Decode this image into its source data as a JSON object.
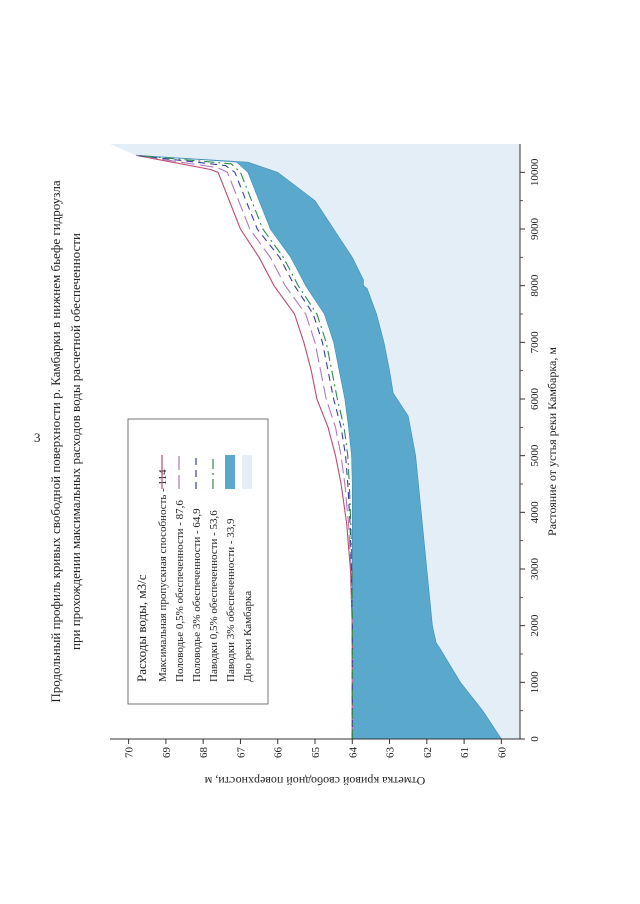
{
  "page_number": "3",
  "chart_data": {
    "type": "area",
    "title": "Продольный профиль кривых свободной поверхности р. Камбарки в нижнем бьефе гидроузла",
    "subtitle": "при прохождении максимальных расходов воды расчетной обеспеченности",
    "xlabel": "Растояние от устья реки Камбарка, м",
    "ylabel": "Отметка кривой свободной поверхности, м",
    "xlim": [
      0,
      10500
    ],
    "ylim": [
      59.5,
      70.5
    ],
    "xticks": [
      "0",
      "1000",
      "2000",
      "3000",
      "4000",
      "5000",
      "6000",
      "7000",
      "8000",
      "9000",
      "10000"
    ],
    "yticks": [
      "60",
      "61",
      "62",
      "63",
      "64",
      "65",
      "66",
      "67",
      "68",
      "69",
      "70"
    ],
    "x_tick_values": [
      0,
      1000,
      2000,
      3000,
      4000,
      5000,
      6000,
      7000,
      8000,
      9000,
      10000
    ],
    "y_tick_values": [
      60,
      61,
      62,
      63,
      64,
      65,
      66,
      67,
      68,
      69,
      70
    ],
    "grid": false,
    "legend_position": "lower-left",
    "legend_title": "Расходы воды, м3/с",
    "colors": {
      "max": "#c04a6a",
      "p05_flood": "#b07ab8",
      "p3_flood": "#3a3fa0",
      "p05_rain": "#2e8a4a",
      "p3_rain": "#5aa8cc",
      "bed": "#e4eef6"
    },
    "series": [
      {
        "name": "Максимальная пропускная способность - 114",
        "style": "solid",
        "color": "#c04a6a",
        "x": [
          0,
          1000,
          2000,
          3000,
          3800,
          4500,
          5000,
          5500,
          6000,
          6500,
          7000,
          7500,
          8000,
          8500,
          9000,
          9500,
          10000,
          10050,
          10300
        ],
        "y": [
          64.0,
          64.0,
          64.0,
          64.05,
          64.15,
          64.3,
          64.45,
          64.65,
          64.95,
          65.1,
          65.3,
          65.55,
          66.1,
          66.5,
          67.0,
          67.3,
          67.6,
          67.8,
          69.8
        ]
      },
      {
        "name": "Половодье 0,5% обеспеченности - 87,6",
        "style": "dash-long",
        "color": "#b07ab8",
        "x": [
          0,
          1000,
          2000,
          3000,
          3800,
          4500,
          5000,
          5500,
          6000,
          6500,
          7000,
          7500,
          8000,
          8500,
          9000,
          9500,
          10000,
          10080,
          10300
        ],
        "y": [
          64.0,
          64.0,
          64.0,
          64.03,
          64.1,
          64.2,
          64.3,
          64.45,
          64.7,
          64.85,
          65.0,
          65.25,
          65.8,
          66.2,
          66.75,
          67.05,
          67.35,
          67.6,
          69.8
        ]
      },
      {
        "name": "Половодье 3% обеспеченности - 64,9",
        "style": "dash",
        "color": "#3a3fa0",
        "x": [
          0,
          1000,
          2000,
          3000,
          3800,
          4500,
          5000,
          5500,
          6000,
          6500,
          7000,
          7500,
          8000,
          8500,
          9000,
          9500,
          10000,
          10120,
          10300
        ],
        "y": [
          64.0,
          64.0,
          64.0,
          64.02,
          64.06,
          64.12,
          64.18,
          64.3,
          64.5,
          64.65,
          64.8,
          65.05,
          65.55,
          65.95,
          66.55,
          66.85,
          67.15,
          67.4,
          69.8
        ]
      },
      {
        "name": "Паводки 0,5% обеспеченности - 53,6",
        "style": "dash-dot",
        "color": "#2e8a4a",
        "x": [
          0,
          1000,
          2000,
          3000,
          3800,
          4500,
          5000,
          5500,
          6000,
          6500,
          7000,
          7500,
          8000,
          8500,
          9000,
          9500,
          10000,
          10150,
          10300
        ],
        "y": [
          64.0,
          64.0,
          64.0,
          64.01,
          64.04,
          64.08,
          64.12,
          64.22,
          64.4,
          64.55,
          64.7,
          64.95,
          65.45,
          65.85,
          66.4,
          66.7,
          67.0,
          67.25,
          69.8
        ]
      },
      {
        "name": "Паводки 3% обеспеченности - 33,9",
        "style": "fill",
        "color": "#5aa8cc",
        "x": [
          0,
          1000,
          2000,
          3000,
          3800,
          4500,
          5000,
          5500,
          6000,
          6500,
          7000,
          7500,
          8000,
          8500,
          9000,
          9500,
          10000,
          10180,
          10300
        ],
        "y": [
          64.0,
          64.0,
          64.0,
          64.0,
          64.0,
          64.0,
          64.02,
          64.1,
          64.2,
          64.35,
          64.5,
          64.75,
          65.25,
          65.65,
          66.2,
          66.5,
          66.8,
          67.1,
          69.8
        ]
      },
      {
        "name": "Дно реки Камбарка",
        "style": "fill-light",
        "color": "#e4eef6",
        "x": [
          0,
          500,
          1000,
          1600,
          1700,
          2000,
          3000,
          4000,
          5000,
          5700,
          6100,
          6500,
          7000,
          7500,
          7950,
          8000,
          8100,
          8500,
          9000,
          9100,
          9500,
          10000,
          10180,
          10300
        ],
        "y": [
          60.0,
          60.5,
          61.1,
          61.65,
          61.75,
          61.85,
          62.0,
          62.15,
          62.3,
          62.5,
          62.9,
          63.0,
          63.15,
          63.35,
          63.6,
          63.7,
          63.7,
          64.0,
          64.5,
          64.6,
          65.0,
          66.0,
          66.8,
          69.8
        ]
      }
    ]
  }
}
